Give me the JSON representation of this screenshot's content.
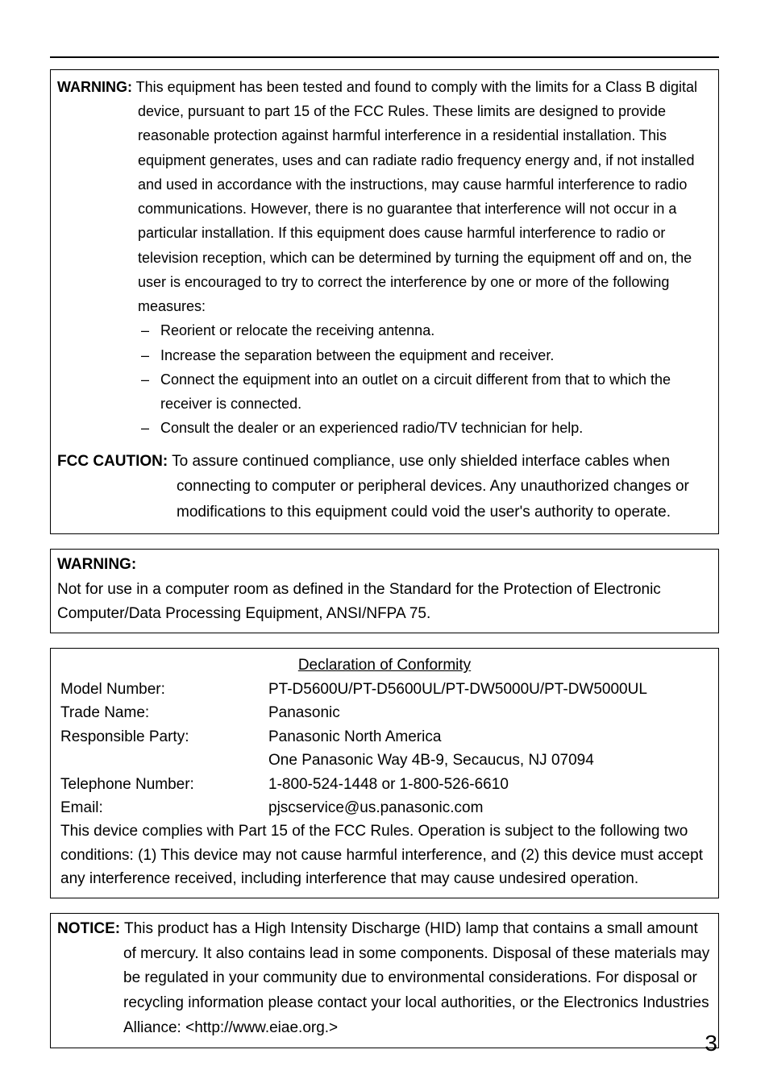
{
  "box1": {
    "warningLabel": "WARNING:",
    "warningLine1": " This equipment has been tested and found to comply with the limits for a Class B digital",
    "warningBody": "device, pursuant to part 15 of the FCC Rules. These limits are designed to provide reasonable protection against harmful interference in a residential installation. This equipment generates, uses and can radiate radio frequency energy and, if not installed and used in accordance with the instructions, may cause harmful interference to radio communications. However, there is no guarantee that interference will not occur in a particular installation. If this equipment does cause harmful interference to radio or television reception, which can be determined by turning the equipment off and on, the user is encouraged to try to correct the interference by one or more of the following measures:",
    "bullets": [
      "Reorient or relocate the receiving antenna.",
      "Increase the separation between the equipment and receiver.",
      "Connect the equipment into an outlet on a circuit different from that to which the receiver is connected.",
      "Consult the dealer or an experienced radio/TV technician for help."
    ],
    "fccLabel": "FCC CAUTION:",
    "fccLine1": " To assure continued compliance, use only shielded interface cables when",
    "fccBody": "connecting to computer or peripheral devices. Any unauthorized changes or modifications to this equipment could void the user's authority to operate."
  },
  "box2": {
    "label": "WARNING:",
    "body": "Not for use in a computer room as defined in the Standard for the Protection of Electronic Computer/Data Processing Equipment, ANSI/NFPA 75."
  },
  "decl": {
    "title": "Declaration of Conformity",
    "rows": [
      {
        "label": "Model Number:",
        "value": "PT-D5600U/PT-D5600UL/PT-DW5000U/PT-DW5000UL"
      },
      {
        "label": "Trade Name:",
        "value": "Panasonic"
      },
      {
        "label": "Responsible Party:",
        "value": "Panasonic North America"
      },
      {
        "label": "",
        "value": "One Panasonic Way 4B-9, Secaucus, NJ 07094"
      },
      {
        "label": "Telephone Number:",
        "value": "1-800-524-1448 or 1-800-526-6610"
      },
      {
        "label": "Email:",
        "value": "pjscservice@us.panasonic.com"
      }
    ],
    "footer": "This device complies with Part 15 of the FCC Rules. Operation is subject to the following two conditions: (1) This device may not cause harmful interference, and (2) this device must accept any interference received, including interference that may cause undesired operation."
  },
  "notice": {
    "label": "NOTICE:",
    "line1": " This product has a High Intensity Discharge (HID) lamp that contains a small amount",
    "body": "of mercury. It also contains lead in some components. Disposal of these materials may be regulated in your community due to environmental considerations. For disposal or recycling information please contact your local authorities, or the Electronics Industries Alliance: <http://www.eiae.org.>"
  },
  "pageNumber": "3"
}
